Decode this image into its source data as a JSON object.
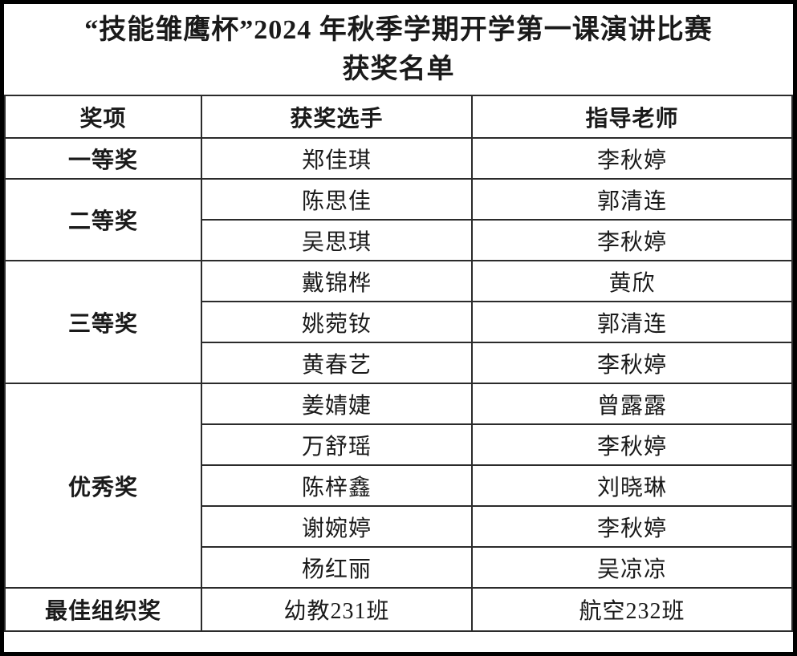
{
  "page": {
    "title_line1": "“技能雏鹰杯”2024 年秋季学期开学第一课演讲比赛",
    "title_line2": "获奖名单"
  },
  "table": {
    "headers": [
      "奖项",
      "获奖选手",
      "指导老师"
    ],
    "groups": [
      {
        "award": "一等奖",
        "entries": [
          {
            "winner": "郑佳琪",
            "teacher": "李秋婷"
          }
        ]
      },
      {
        "award": "二等奖",
        "entries": [
          {
            "winner": "陈思佳",
            "teacher": "郭清连"
          },
          {
            "winner": "吴思琪",
            "teacher": "李秋婷"
          }
        ]
      },
      {
        "award": "三等奖",
        "entries": [
          {
            "winner": "戴锦桦",
            "teacher": "黄欣"
          },
          {
            "winner": "姚菀钕",
            "teacher": "郭清连"
          },
          {
            "winner": "黄春艺",
            "teacher": "李秋婷"
          }
        ]
      },
      {
        "award": "优秀奖",
        "entries": [
          {
            "winner": "姜婧婕",
            "teacher": "曾露露"
          },
          {
            "winner": "万舒瑶",
            "teacher": "李秋婷"
          },
          {
            "winner": "陈梓鑫",
            "teacher": "刘晓琳"
          },
          {
            "winner": "谢婉婷",
            "teacher": "李秋婷"
          },
          {
            "winner": "杨红丽",
            "teacher": "吴凉凉"
          }
        ]
      },
      {
        "award": "最佳组织奖",
        "entries": [
          {
            "winner": "幼教231班",
            "teacher": "航空232班"
          }
        ]
      }
    ]
  },
  "colors": {
    "text": "#1a1a1a",
    "border_inner": "#2b2b2b",
    "border_outer": "#000000",
    "background": "#ffffff"
  }
}
